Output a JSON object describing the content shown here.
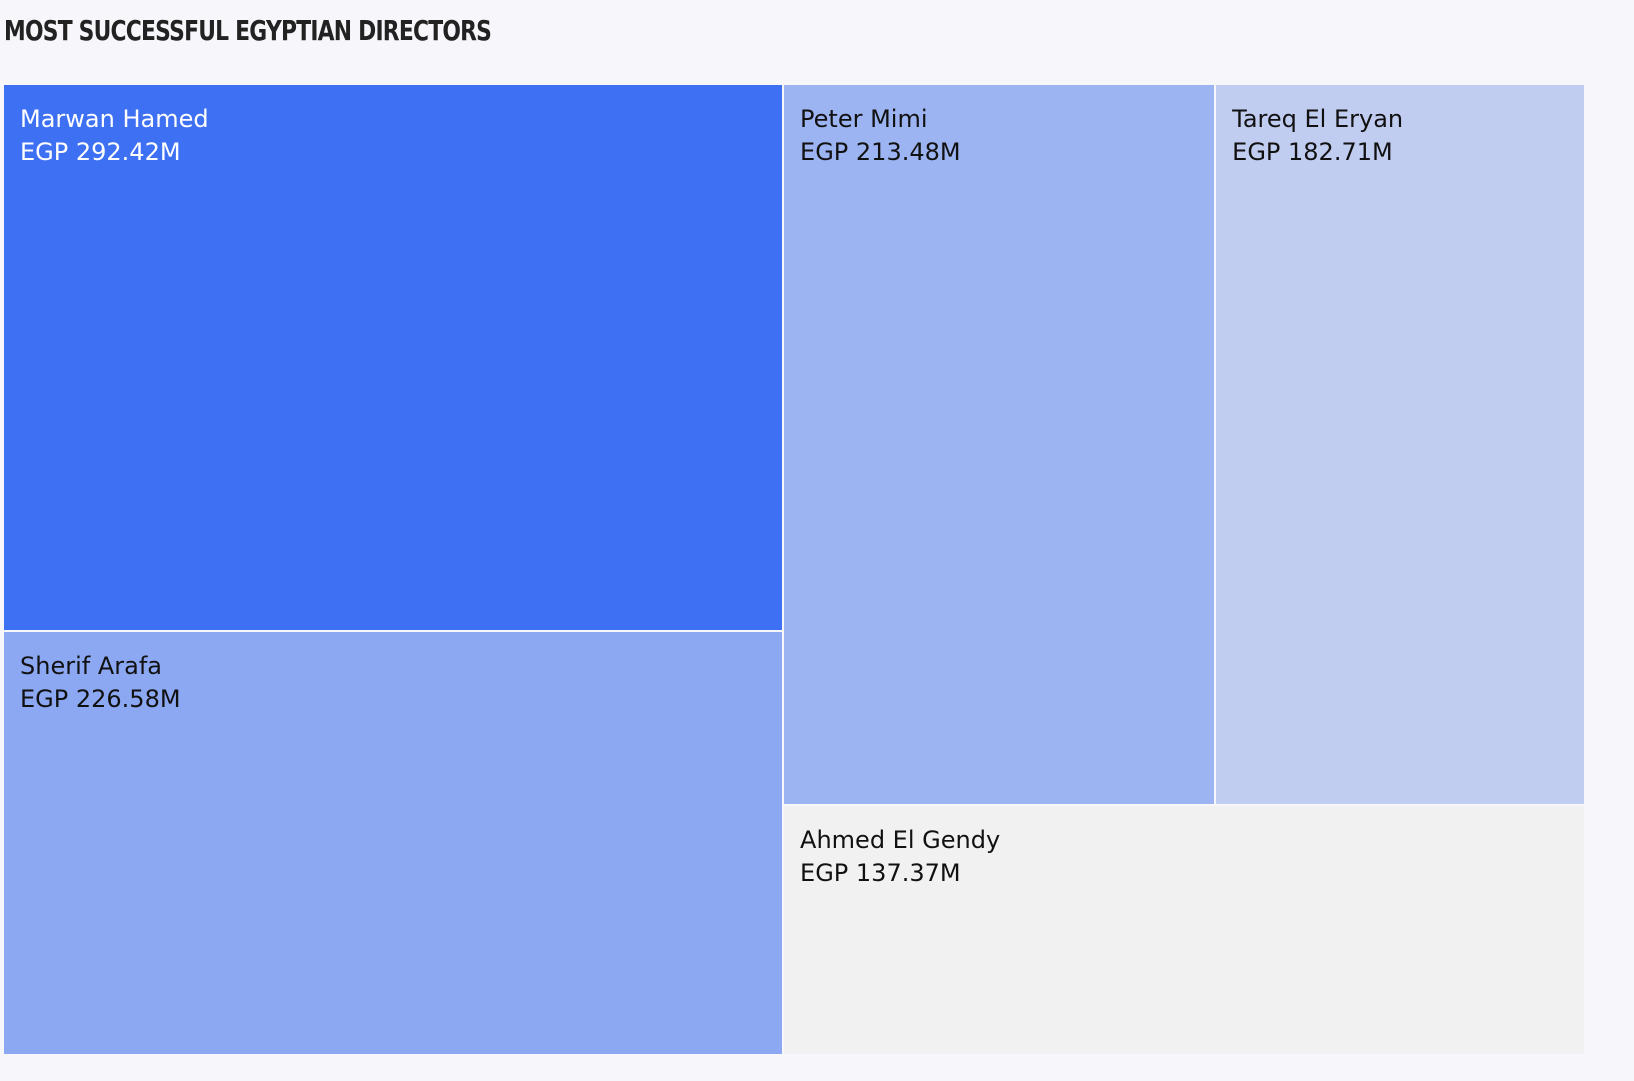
{
  "chart_data": {
    "type": "treemap",
    "title": "MOST SUCCESSFUL EGYPTIAN DIRECTORS",
    "items": [
      {
        "name": "Marwan Hamed",
        "value": 292.42,
        "label": "EGP 292.42M",
        "color": "#3e70f3",
        "text_color": "#ffffff"
      },
      {
        "name": "Sherif Arafa",
        "value": 226.58,
        "label": "EGP 226.58M",
        "color": "#8ca8f3",
        "text_color": "#111111"
      },
      {
        "name": "Peter Mimi",
        "value": 213.48,
        "label": "EGP 213.48M",
        "color": "#9db4f2",
        "text_color": "#111111"
      },
      {
        "name": "Tareq El Eryan",
        "value": 182.71,
        "label": "EGP 182.71M",
        "color": "#c1ccf1",
        "text_color": "#111111"
      },
      {
        "name": "Ahmed El Gendy",
        "value": 137.37,
        "label": "EGP 137.37M",
        "color": "#f1f1f2",
        "text_color": "#111111"
      }
    ]
  }
}
